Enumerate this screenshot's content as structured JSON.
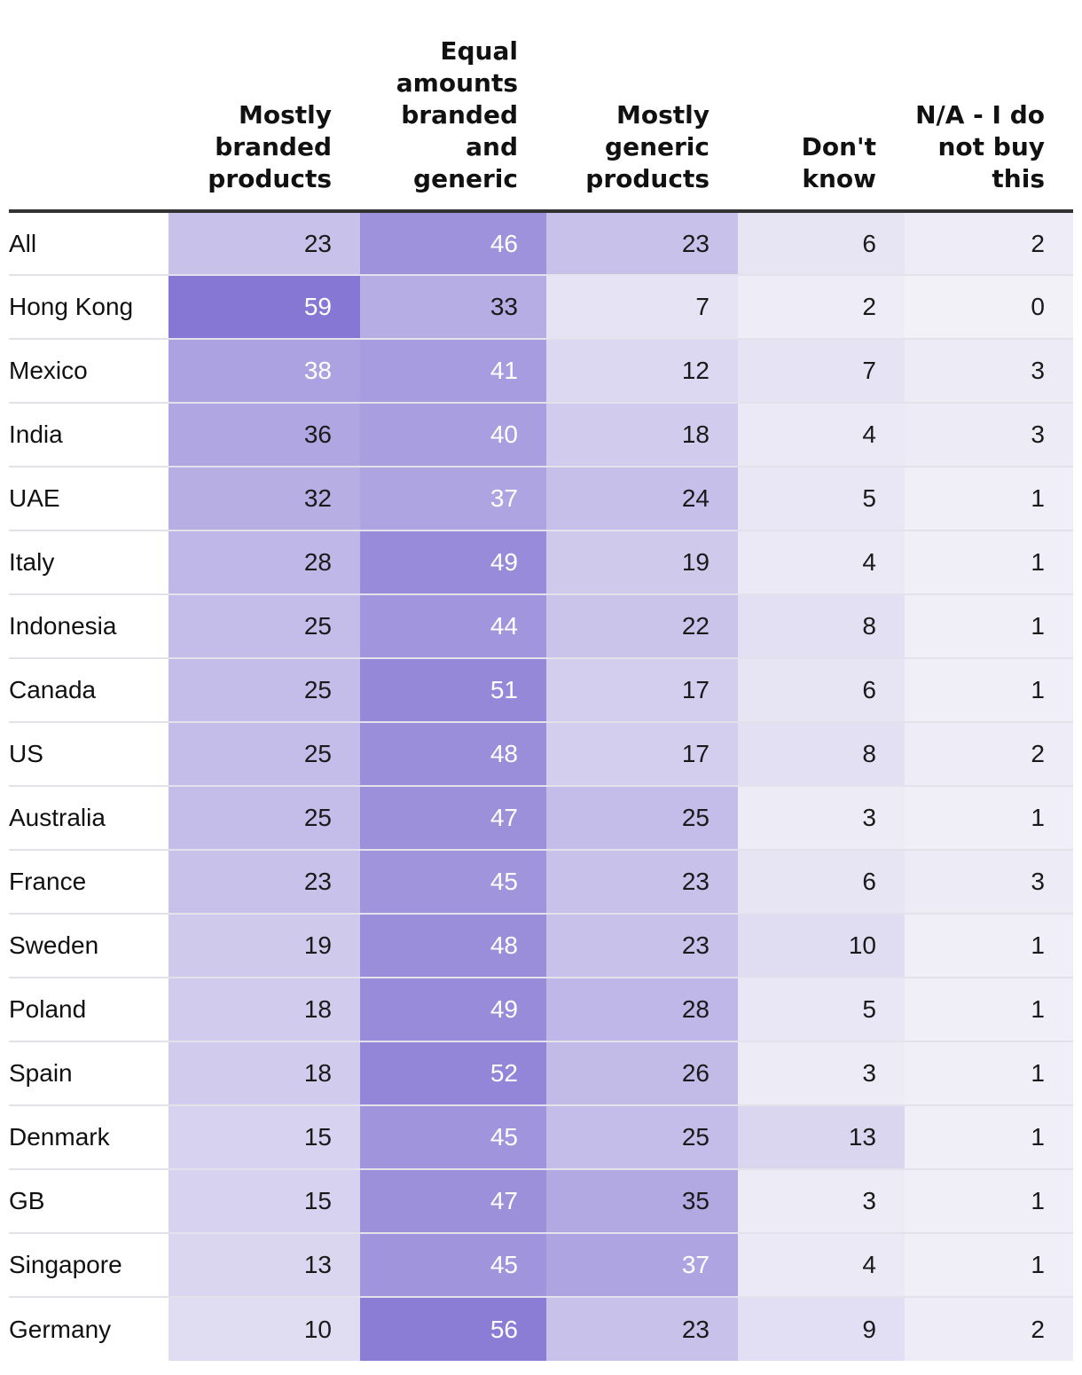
{
  "chart_data": {
    "type": "table",
    "title": "",
    "columns": [
      "Mostly branded products",
      "Equal amounts branded and generic",
      "Mostly generic products",
      "Don't know",
      "N/A - I do not buy this"
    ],
    "rows": [
      {
        "label": "All",
        "values": [
          23,
          46,
          23,
          6,
          2
        ]
      },
      {
        "label": "Hong Kong",
        "values": [
          59,
          33,
          7,
          2,
          0
        ]
      },
      {
        "label": "Mexico",
        "values": [
          38,
          41,
          12,
          7,
          3
        ]
      },
      {
        "label": "India",
        "values": [
          36,
          40,
          18,
          4,
          3
        ]
      },
      {
        "label": "UAE",
        "values": [
          32,
          37,
          24,
          5,
          1
        ]
      },
      {
        "label": "Italy",
        "values": [
          28,
          49,
          19,
          4,
          1
        ]
      },
      {
        "label": "Indonesia",
        "values": [
          25,
          44,
          22,
          8,
          1
        ]
      },
      {
        "label": "Canada",
        "values": [
          25,
          51,
          17,
          6,
          1
        ]
      },
      {
        "label": "US",
        "values": [
          25,
          48,
          17,
          8,
          2
        ]
      },
      {
        "label": "Australia",
        "values": [
          25,
          47,
          25,
          3,
          1
        ]
      },
      {
        "label": "France",
        "values": [
          23,
          45,
          23,
          6,
          3
        ]
      },
      {
        "label": "Sweden",
        "values": [
          19,
          48,
          23,
          10,
          1
        ]
      },
      {
        "label": "Poland",
        "values": [
          18,
          49,
          28,
          5,
          1
        ]
      },
      {
        "label": "Spain",
        "values": [
          18,
          52,
          26,
          3,
          1
        ]
      },
      {
        "label": "Denmark",
        "values": [
          15,
          45,
          25,
          13,
          1
        ]
      },
      {
        "label": "GB",
        "values": [
          15,
          47,
          35,
          3,
          1
        ]
      },
      {
        "label": "Singapore",
        "values": [
          13,
          45,
          37,
          4,
          1
        ]
      },
      {
        "label": "Germany",
        "values": [
          10,
          56,
          23,
          9,
          2
        ]
      }
    ],
    "color_scale": {
      "low": "#f2f1f8",
      "high": "#8677d4",
      "text_dark": "#1a1a1a",
      "text_light": "#ffffff"
    }
  }
}
